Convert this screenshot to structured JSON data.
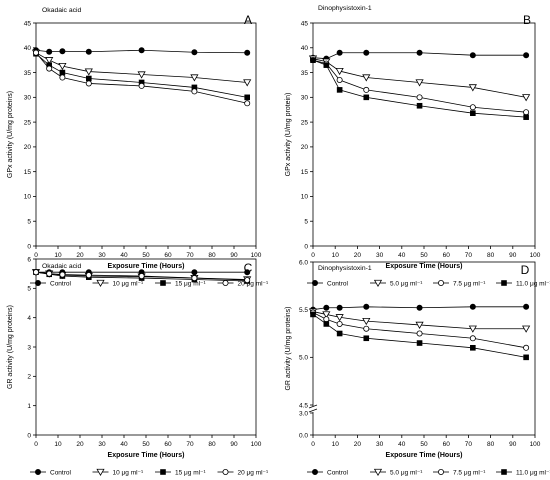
{
  "chart_data": [
    {
      "type": "line",
      "title": "Okadaic acid",
      "panel_letter": "A",
      "xlabel": "Exposure Time (Hours)",
      "ylabel": "GPx activity (U/mg proteins)",
      "xlim": [
        0,
        100
      ],
      "ylim": [
        0,
        45
      ],
      "xticks": [
        0,
        10,
        20,
        30,
        40,
        50,
        60,
        70,
        80,
        90,
        100
      ],
      "yticks": [
        0,
        5,
        10,
        15,
        20,
        25,
        30,
        35,
        40,
        45
      ],
      "x": [
        0,
        6,
        12,
        24,
        48,
        72,
        96
      ],
      "series": [
        {
          "name": "Control",
          "marker": "filled-circle",
          "values": [
            39.5,
            39.2,
            39.3,
            39.2,
            39.5,
            39.1,
            39.0
          ]
        },
        {
          "name": "10 μg ml⁻¹",
          "marker": "open-triangle-down",
          "values": [
            39.0,
            37.5,
            36.3,
            35.2,
            34.6,
            34.0,
            33.0
          ]
        },
        {
          "name": "15 μg ml⁻¹",
          "marker": "filled-square",
          "values": [
            38.8,
            36.5,
            35.0,
            33.8,
            33.0,
            32.0,
            30.0
          ]
        },
        {
          "name": "20 μg ml⁻¹",
          "marker": "open-circle",
          "values": [
            39.0,
            35.8,
            34.0,
            32.8,
            32.3,
            31.2,
            28.8
          ]
        }
      ],
      "legend_position": "bottom"
    },
    {
      "type": "line",
      "title": "Dinophysistoxin-1",
      "panel_letter": "B",
      "xlabel": "Exposure Time (Hours)",
      "ylabel": "GPx activity (U/mg protein)",
      "xlim": [
        0,
        100
      ],
      "ylim": [
        0,
        45
      ],
      "xticks": [
        0,
        10,
        20,
        30,
        40,
        50,
        60,
        70,
        80,
        90,
        100
      ],
      "yticks": [
        0,
        5,
        10,
        15,
        20,
        25,
        30,
        35,
        40,
        45
      ],
      "x": [
        0,
        6,
        12,
        24,
        48,
        72,
        96
      ],
      "series": [
        {
          "name": "Control",
          "marker": "filled-circle",
          "values": [
            38.0,
            37.8,
            39.0,
            39.0,
            39.0,
            38.5,
            38.5
          ]
        },
        {
          "name": "5.0 μg ml⁻¹",
          "marker": "open-triangle-down",
          "values": [
            37.8,
            37.2,
            35.3,
            34.0,
            33.0,
            32.0,
            30.0
          ]
        },
        {
          "name": "7.5 μg ml⁻¹",
          "marker": "open-circle",
          "values": [
            37.5,
            36.8,
            33.5,
            31.5,
            30.0,
            28.0,
            27.0
          ]
        },
        {
          "name": "11.0 μg ml⁻¹",
          "marker": "filled-square",
          "values": [
            37.5,
            36.5,
            31.5,
            30.0,
            28.3,
            26.8,
            26.0
          ]
        }
      ],
      "legend_position": "bottom"
    },
    {
      "type": "line",
      "title": "Okadaic acid",
      "panel_letter": "C",
      "xlabel": "Exposure Time (Hours)",
      "ylabel": "GR activity (U/mg proteins)",
      "xlim": [
        0,
        100
      ],
      "ylim": [
        0,
        6
      ],
      "xticks": [
        0,
        10,
        20,
        30,
        40,
        50,
        60,
        70,
        80,
        90,
        100
      ],
      "yticks": [
        0,
        1,
        2,
        3,
        4,
        5,
        6
      ],
      "x": [
        0,
        6,
        12,
        24,
        48,
        72,
        96
      ],
      "series": [
        {
          "name": "Control",
          "marker": "filled-circle",
          "values": [
            5.55,
            5.55,
            5.55,
            5.55,
            5.55,
            5.55,
            5.55
          ]
        },
        {
          "name": "10 μg ml⁻¹",
          "marker": "open-triangle-down",
          "values": [
            5.55,
            5.5,
            5.45,
            5.42,
            5.4,
            5.35,
            5.3
          ]
        },
        {
          "name": "15 μg ml⁻¹",
          "marker": "filled-square",
          "values": [
            5.55,
            5.48,
            5.42,
            5.38,
            5.35,
            5.3,
            5.25
          ]
        },
        {
          "name": "20 μg ml⁻¹",
          "marker": "open-circle",
          "values": [
            5.55,
            5.5,
            5.47,
            5.45,
            5.42,
            5.35,
            5.28
          ]
        }
      ],
      "legend_position": "bottom"
    },
    {
      "type": "line",
      "title": "Dinophysistoxin-1",
      "panel_letter": "D",
      "xlabel": "Exposure Time (Hours)",
      "ylabel": "GR activity (U/mg proteins)",
      "xlim": [
        0,
        100
      ],
      "ylim": [
        0,
        6.0
      ],
      "axis_break": [
        3.0,
        4.5
      ],
      "xticks": [
        0,
        10,
        20,
        30,
        40,
        50,
        60,
        70,
        80,
        90,
        100
      ],
      "yticks": [
        "0.0",
        "3.0",
        "4.5",
        "5.0",
        "5.5",
        "6.0"
      ],
      "x": [
        0,
        6,
        12,
        24,
        48,
        72,
        96
      ],
      "series": [
        {
          "name": "Control",
          "marker": "filled-circle",
          "values": [
            5.5,
            5.52,
            5.52,
            5.53,
            5.52,
            5.53,
            5.53
          ]
        },
        {
          "name": "5.0 μg ml⁻¹",
          "marker": "open-triangle-down",
          "values": [
            5.48,
            5.45,
            5.42,
            5.38,
            5.34,
            5.3,
            5.3
          ]
        },
        {
          "name": "7.5 μg ml⁻¹",
          "marker": "open-circle",
          "values": [
            5.47,
            5.4,
            5.35,
            5.3,
            5.25,
            5.2,
            5.1
          ]
        },
        {
          "name": "11.0 μg ml⁻¹",
          "marker": "filled-square",
          "values": [
            5.45,
            5.35,
            5.25,
            5.2,
            5.15,
            5.1,
            5.0
          ]
        }
      ],
      "legend_position": "bottom"
    }
  ]
}
